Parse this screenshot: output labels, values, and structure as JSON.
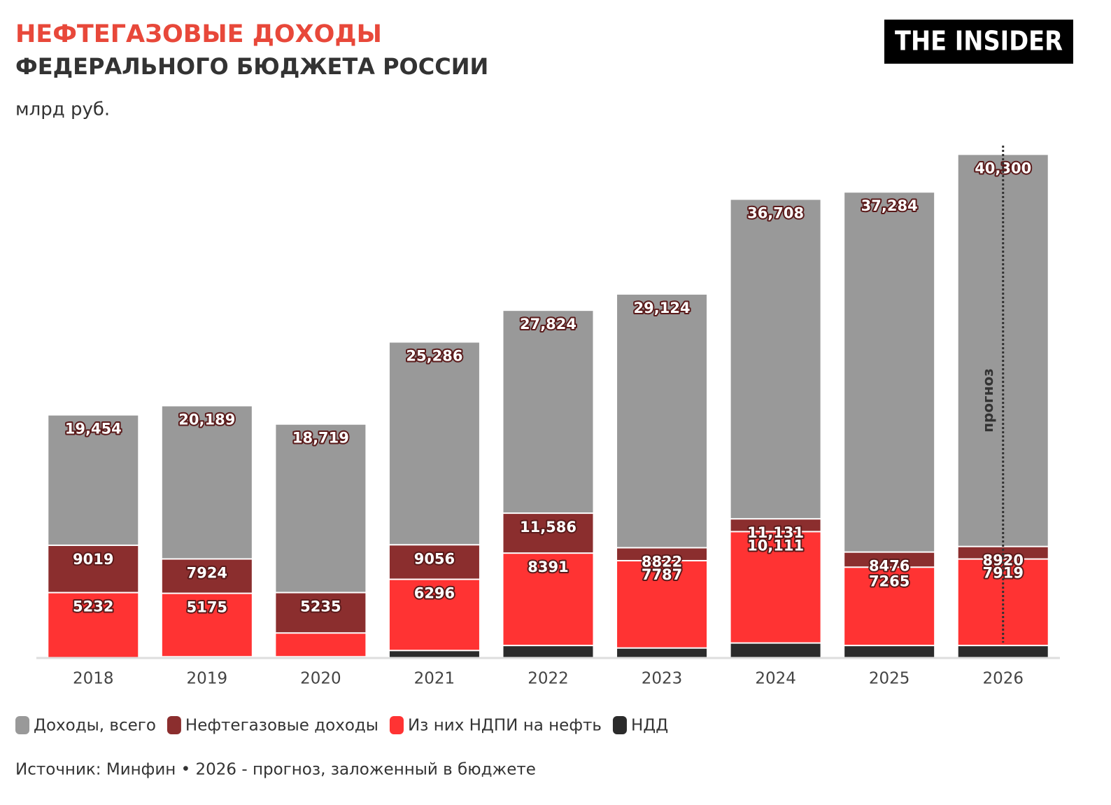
{
  "chart_data": {
    "type": "overlap_bar",
    "title": "НЕФТЕГАЗОВЫЕ ДОХОДЫ",
    "subtitle": "ФЕДЕРАЛЬНОГО БЮДЖЕТА РОССИИ",
    "unit": "млрд руб.",
    "logo": "THE INSIDER",
    "annotation": "прогноз",
    "annotation_category": 8,
    "source": "Источник: Минфин • 2026 - прогноз, заложенный в бюджете",
    "categories": [
      "2018",
      "2019",
      "2020",
      "2021",
      "2022",
      "2023",
      "2024",
      "2025",
      "2026"
    ],
    "ylim": [
      0,
      42000
    ],
    "series": [
      {
        "name": "Доходы, всего",
        "color": "#999999",
        "values": [
          19454,
          20189,
          18719,
          25286,
          27824,
          29124,
          36708,
          37284,
          40300
        ],
        "value_labels": [
          "19,454",
          "20,189",
          "18,719",
          "25,286",
          "27,824",
          "29,124",
          "36,708",
          "37,284",
          "40,300"
        ]
      },
      {
        "name": "Нефтегазовые доходы",
        "color": "#8b2e2e",
        "values": [
          9019,
          7924,
          5235,
          9056,
          11586,
          8822,
          11131,
          8476,
          8920
        ],
        "value_labels": [
          "9019",
          "7924",
          "5235",
          "9056",
          "11,586",
          "8822",
          "11,131",
          "8476",
          "8920"
        ]
      },
      {
        "name": "Из них НДПИ на нефть",
        "color": "#ff3333",
        "values": [
          5232,
          5175,
          2000,
          6296,
          8391,
          7787,
          10111,
          7265,
          7919
        ],
        "value_labels": [
          "5232",
          "5175",
          null,
          "6296",
          "8391",
          "7787",
          "10,111",
          "7265",
          "7919"
        ]
      },
      {
        "name": "НДД",
        "color": "#2b2b2b",
        "values": [
          0,
          100,
          100,
          600,
          1000,
          800,
          1200,
          1000,
          1000
        ]
      }
    ]
  }
}
